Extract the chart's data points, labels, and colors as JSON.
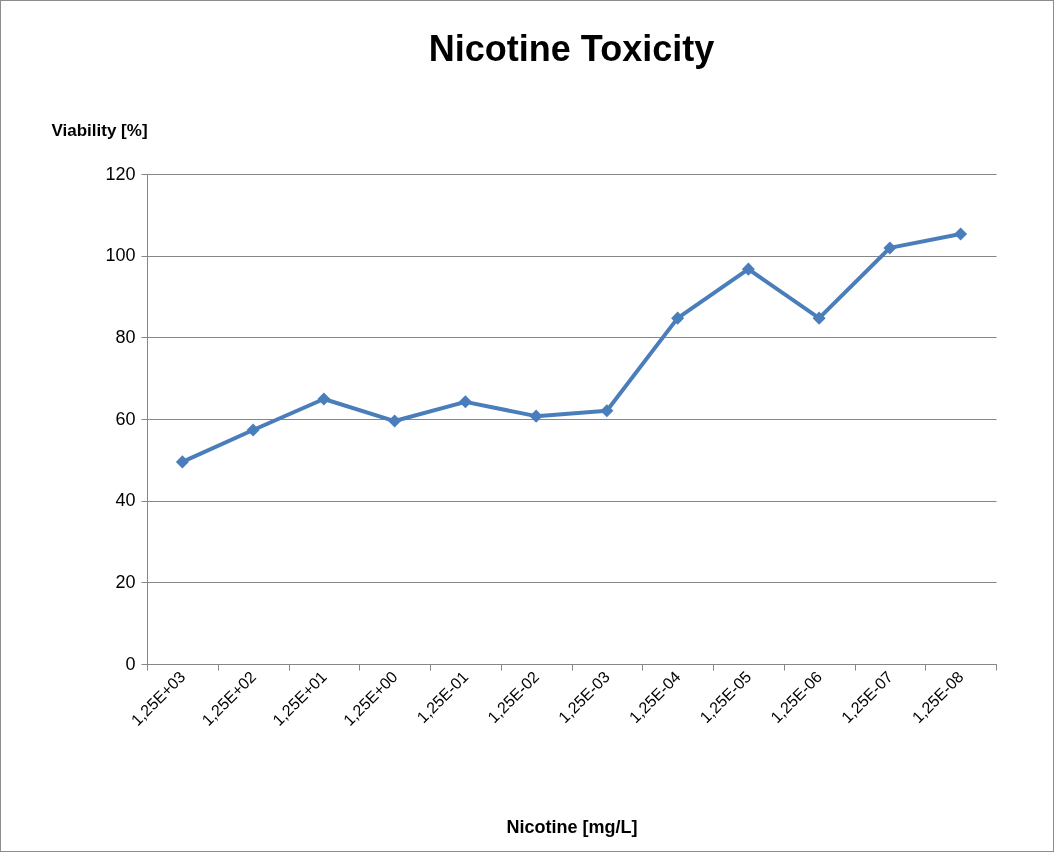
{
  "chart_data": {
    "type": "line",
    "title": "Nicotine Toxicity",
    "xlabel": "Nicotine [mg/L]",
    "ylabel": "Viability [%]",
    "categories": [
      "1,25E+03",
      "1,25E+02",
      "1,25E+01",
      "1,25E+00",
      "1,25E-01",
      "1,25E-02",
      "1,25E-03",
      "1,25E-04",
      "1,25E-05",
      "1,25E-06",
      "1,25E-07",
      "1,25E-08"
    ],
    "series": [
      {
        "color": "#4a7ebb",
        "values": [
          49.5,
          57.3,
          64.9,
          59.5,
          64.2,
          60.7,
          62,
          84.7,
          96.7,
          84.7,
          101.9,
          105.3
        ]
      }
    ],
    "ylim": [
      0,
      120
    ],
    "yticks": [
      0,
      20,
      40,
      60,
      80,
      100,
      120
    ],
    "grid": "y",
    "legend": false,
    "marker": "diamond",
    "line_style": "solid"
  }
}
